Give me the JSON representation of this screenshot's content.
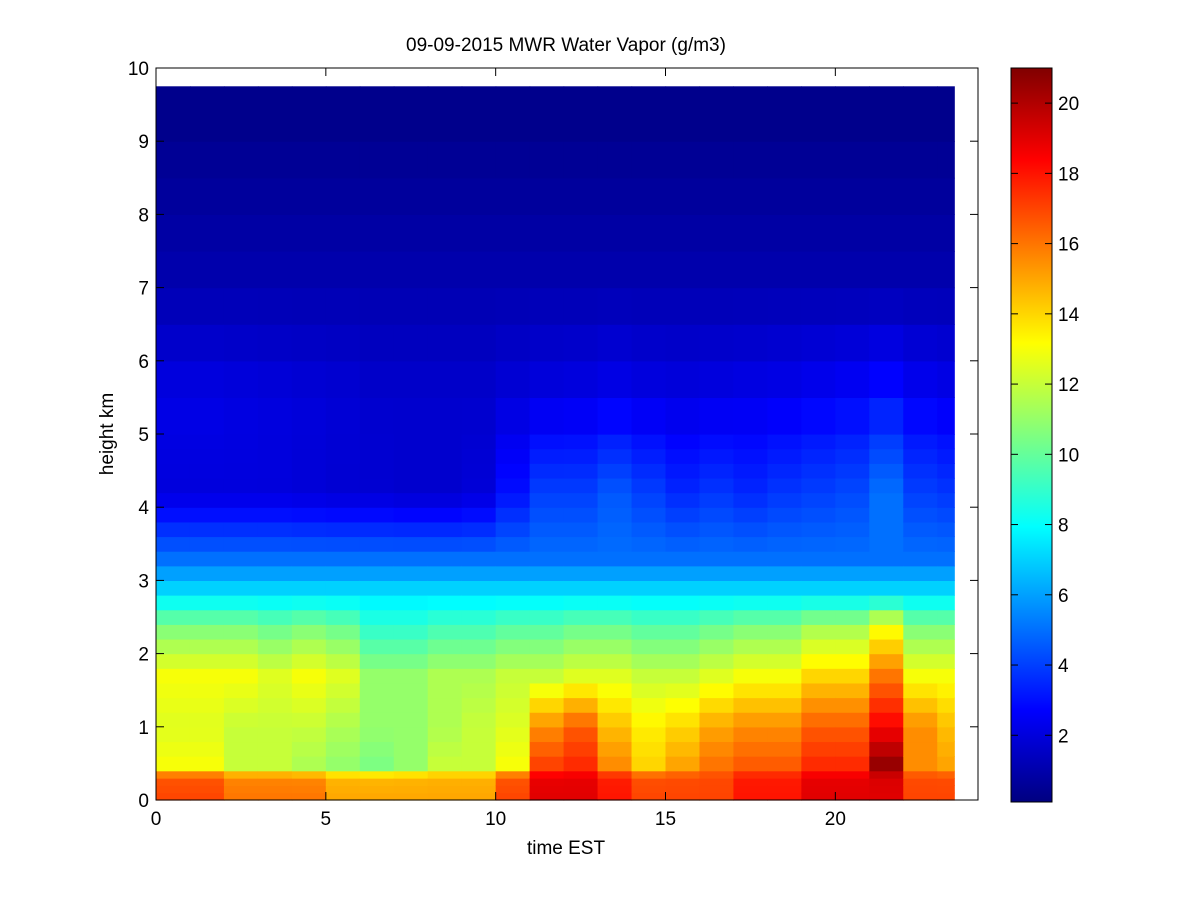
{
  "chart_data": {
    "type": "heatmap",
    "title": "09-09-2015 MWR Water Vapor (g/m3)",
    "xlabel": "time EST",
    "ylabel": "height km",
    "xlim": [
      0,
      24.2
    ],
    "ylim": [
      0,
      10
    ],
    "x_ticks": [
      0,
      5,
      10,
      15,
      20
    ],
    "y_ticks": [
      0,
      1,
      2,
      3,
      4,
      5,
      6,
      7,
      8,
      9,
      10
    ],
    "colorbar": {
      "range": [
        0.1,
        21.0
      ],
      "ticks": [
        2,
        4,
        6,
        8,
        10,
        12,
        14,
        16,
        18,
        20
      ],
      "colormap": "jet"
    },
    "grid": false,
    "x": [
      0.5,
      1.5,
      2.5,
      3.5,
      4.5,
      5.5,
      6.5,
      7.5,
      8.5,
      9.5,
      10.5,
      11.5,
      12.5,
      13.5,
      14.5,
      15.5,
      16.5,
      17.5,
      18.5,
      19.5,
      20.5,
      21.5,
      22.5,
      23.5
    ],
    "x_edges": [
      0,
      1,
      2,
      3,
      4,
      5,
      6,
      7,
      8,
      9,
      10,
      11,
      12,
      13,
      14,
      15,
      16,
      17,
      18,
      19,
      20,
      21,
      22,
      23,
      23.5
    ],
    "heights_km": [
      0.05,
      0.15,
      0.25,
      0.35,
      0.5,
      0.7,
      0.9,
      1.1,
      1.3,
      1.5,
      1.7,
      1.9,
      2.1,
      2.3,
      2.5,
      2.7,
      2.9,
      3.1,
      3.3,
      3.5,
      3.7,
      3.9,
      4.1,
      4.3,
      4.5,
      4.7,
      4.9,
      5.25,
      5.75,
      6.25,
      6.75,
      7.25,
      7.75,
      8.25,
      8.75,
      9.5
    ],
    "height_edges_km": [
      0,
      0.1,
      0.2,
      0.3,
      0.4,
      0.6,
      0.8,
      1.0,
      1.2,
      1.4,
      1.6,
      1.8,
      2.0,
      2.2,
      2.4,
      2.6,
      2.8,
      3.0,
      3.2,
      3.4,
      3.6,
      3.8,
      4.0,
      4.2,
      4.4,
      4.6,
      4.8,
      5.0,
      5.5,
      6.0,
      6.5,
      7.0,
      7.5,
      8.0,
      8.5,
      9.0,
      9.75
    ],
    "column_profiles": [
      {
        "bot": 17,
        "low": 13,
        "mid": 12.5,
        "hi": 13,
        "topLow": 2.0,
        "upper": 2.6
      },
      {
        "bot": 17,
        "low": 13,
        "mid": 12.5,
        "hi": 13,
        "topLow": 2.0,
        "upper": 2.6
      },
      {
        "bot": 16,
        "low": 12,
        "mid": 12,
        "hi": 13,
        "topLow": 2.0,
        "upper": 2.5
      },
      {
        "bot": 16,
        "low": 12,
        "mid": 12,
        "hi": 12.5,
        "topLow": 2.0,
        "upper": 2.4
      },
      {
        "bot": 16,
        "low": 11.5,
        "mid": 12,
        "hi": 13,
        "topLow": 1.9,
        "upper": 2.3
      },
      {
        "bot": 15,
        "low": 11,
        "mid": 11.5,
        "hi": 12.5,
        "topLow": 1.8,
        "upper": 2.2
      },
      {
        "bot": 15,
        "low": 10.5,
        "mid": 11,
        "hi": 11,
        "topLow": 1.8,
        "upper": 2.0
      },
      {
        "bot": 15,
        "low": 11,
        "mid": 11,
        "hi": 11,
        "topLow": 1.7,
        "upper": 2.0
      },
      {
        "bot": 15,
        "low": 12,
        "mid": 11.5,
        "hi": 11.5,
        "topLow": 1.7,
        "upper": 2.0
      },
      {
        "bot": 15,
        "low": 12,
        "mid": 12,
        "hi": 11.5,
        "topLow": 1.9,
        "upper": 2.0
      },
      {
        "bot": 17,
        "low": 13,
        "mid": 12.5,
        "hi": 12,
        "topLow": 3.0,
        "upper": 2.3
      },
      {
        "bot": 19,
        "low": 17,
        "mid": 15.5,
        "hi": 12,
        "topLow": 4.0,
        "upper": 2.5
      },
      {
        "bot": 19,
        "low": 17.5,
        "mid": 16.5,
        "hi": 12.5,
        "topLow": 4.0,
        "upper": 2.6
      },
      {
        "bot": 18,
        "low": 15.5,
        "mid": 14.5,
        "hi": 12.5,
        "topLow": 4.5,
        "upper": 2.8
      },
      {
        "bot": 17,
        "low": 14,
        "mid": 13.5,
        "hi": 12,
        "topLow": 4.0,
        "upper": 2.6
      },
      {
        "bot": 17,
        "low": 15,
        "mid": 14,
        "hi": 12,
        "topLow": 3.5,
        "upper": 2.5
      },
      {
        "bot": 17,
        "low": 16,
        "mid": 15,
        "hi": 12.5,
        "topLow": 3.8,
        "upper": 2.6
      },
      {
        "bot": 18,
        "low": 16.5,
        "mid": 15.5,
        "hi": 13,
        "topLow": 3.5,
        "upper": 2.7
      },
      {
        "bot": 18,
        "low": 16.5,
        "mid": 15.5,
        "hi": 13,
        "topLow": 3.8,
        "upper": 2.8
      },
      {
        "bot": 19,
        "low": 17.5,
        "mid": 16.5,
        "hi": 14,
        "topLow": 4.0,
        "upper": 3.0
      },
      {
        "bot": 19,
        "low": 17.5,
        "mid": 16.5,
        "hi": 14,
        "topLow": 4.2,
        "upper": 3.2
      },
      {
        "bot": 19,
        "low": 20.5,
        "mid": 18.5,
        "hi": 16,
        "topLow": 5.0,
        "upper": 3.6
      },
      {
        "bot": 17,
        "low": 15.5,
        "mid": 15.5,
        "hi": 13,
        "topLow": 4.0,
        "upper": 3.0
      },
      {
        "bot": 17,
        "low": 15,
        "mid": 14.5,
        "hi": 13,
        "topLow": 3.8,
        "upper": 2.8
      }
    ]
  }
}
